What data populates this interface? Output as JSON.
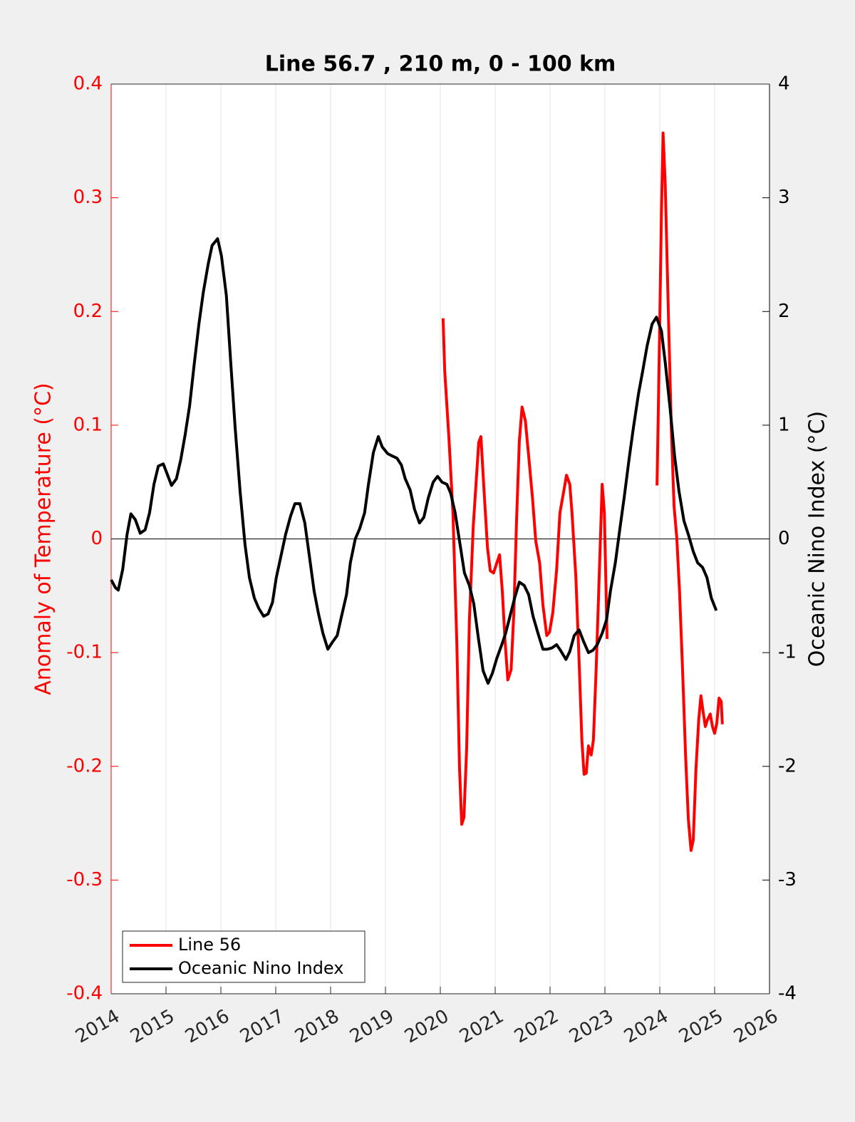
{
  "chart_data": {
    "type": "line",
    "title": "Line 56.7 , 210 m, 0 - 100 km",
    "y_label": "Anomaly of Temperature (°C)",
    "y2_label": "Oceanic Nino Index (°C)",
    "xlim": [
      2014,
      2026
    ],
    "xticks": [
      2014,
      2015,
      2016,
      2017,
      2018,
      2019,
      2020,
      2021,
      2022,
      2023,
      2024,
      2025,
      2026
    ],
    "ylim": [
      -0.4,
      0.4
    ],
    "yticks": [
      -0.4,
      -0.3,
      -0.2,
      -0.1,
      0,
      0.1,
      0.2,
      0.3,
      0.4
    ],
    "y2lim": [
      -4,
      4
    ],
    "y2ticks": [
      -4,
      -3,
      -2,
      -1,
      0,
      1,
      2,
      3,
      4
    ],
    "grid": "x",
    "zero_line": true,
    "legend": "lower left",
    "series": [
      {
        "name": "Line 56",
        "color": "#ff0000",
        "x": [
          2020.05,
          2020.08,
          2020.16,
          2020.23,
          2020.3,
          2020.35,
          2020.39,
          2020.43,
          2020.48,
          2020.53,
          2020.6,
          2020.65,
          2020.7,
          2020.74,
          2020.79,
          2020.86,
          2020.91,
          2020.97,
          2021.03,
          2021.08,
          2021.13,
          2021.18,
          2021.23,
          2021.29,
          2021.34,
          2021.39,
          2021.44,
          2021.49,
          2021.55,
          2021.61,
          2021.68,
          2021.74,
          2021.81,
          2021.87,
          2021.94,
          2021.99,
          2022.05,
          2022.12,
          2022.18,
          2022.25,
          2022.3,
          2022.36,
          2022.4,
          2022.47,
          2022.53,
          2022.58,
          2022.62,
          2022.66,
          2022.7,
          2022.75,
          2022.79,
          2022.84,
          2022.9,
          2022.95,
          2022.99,
          2023.04,
          null,
          2023.95,
          2023.99,
          2024.03,
          2024.06,
          2024.1,
          2024.16,
          2024.21,
          2024.26,
          2024.31,
          2024.36,
          2024.42,
          2024.47,
          2024.52,
          2024.57,
          2024.61,
          2024.66,
          2024.71,
          2024.75,
          2024.79,
          2024.83,
          2024.87,
          2024.92,
          2024.96,
          2025.0,
          2025.04,
          2025.08,
          2025.12,
          2025.14
        ],
        "values": [
          0.194,
          0.148,
          0.086,
          0.023,
          -0.09,
          -0.202,
          -0.251,
          -0.245,
          -0.184,
          -0.071,
          0.011,
          0.048,
          0.085,
          0.09,
          0.048,
          -0.008,
          -0.028,
          -0.03,
          -0.021,
          -0.014,
          -0.046,
          -0.09,
          -0.124,
          -0.115,
          -0.065,
          0.017,
          0.086,
          0.116,
          0.104,
          0.073,
          0.036,
          -0.002,
          -0.021,
          -0.058,
          -0.085,
          -0.082,
          -0.065,
          -0.027,
          0.023,
          0.042,
          0.056,
          0.048,
          0.023,
          -0.033,
          -0.108,
          -0.177,
          -0.207,
          -0.206,
          -0.182,
          -0.19,
          -0.177,
          -0.115,
          -0.027,
          0.048,
          0.023,
          -0.088,
          null,
          0.047,
          0.161,
          0.286,
          0.357,
          0.311,
          0.192,
          0.098,
          0.029,
          0.001,
          -0.046,
          -0.121,
          -0.19,
          -0.246,
          -0.274,
          -0.265,
          -0.202,
          -0.159,
          -0.138,
          -0.152,
          -0.165,
          -0.159,
          -0.154,
          -0.165,
          -0.171,
          -0.162,
          -0.14,
          -0.143,
          -0.163
        ]
      },
      {
        "name": "Oceanic Nino Index",
        "color": "#000000",
        "axis": "y2",
        "x": [
          2014.0,
          2014.08,
          2014.13,
          2014.21,
          2014.29,
          2014.36,
          2014.44,
          2014.53,
          2014.62,
          2014.7,
          2014.78,
          2014.86,
          2014.95,
          2015.03,
          2015.1,
          2015.19,
          2015.27,
          2015.35,
          2015.43,
          2015.51,
          2015.6,
          2015.68,
          2015.77,
          2015.84,
          2015.94,
          2016.01,
          2016.1,
          2016.18,
          2016.26,
          2016.35,
          2016.44,
          2016.52,
          2016.61,
          2016.69,
          2016.78,
          2016.86,
          2016.94,
          2017.01,
          2017.1,
          2017.18,
          2017.27,
          2017.35,
          2017.44,
          2017.53,
          2017.61,
          2017.7,
          2017.78,
          2017.86,
          2017.95,
          2018.03,
          2018.12,
          2018.19,
          2018.29,
          2018.36,
          2018.45,
          2018.53,
          2018.62,
          2018.69,
          2018.78,
          2018.87,
          2018.94,
          2019.04,
          2019.12,
          2019.21,
          2019.29,
          2019.36,
          2019.45,
          2019.53,
          2019.62,
          2019.7,
          2019.78,
          2019.87,
          2019.95,
          2020.03,
          2020.12,
          2020.19,
          2020.27,
          2020.36,
          2020.44,
          2020.53,
          2020.61,
          2020.69,
          2020.78,
          2020.87,
          2020.95,
          2021.03,
          2021.12,
          2021.19,
          2021.27,
          2021.36,
          2021.44,
          2021.53,
          2021.61,
          2021.69,
          2021.78,
          2021.87,
          2021.95,
          2022.03,
          2022.12,
          2022.19,
          2022.29,
          2022.36,
          2022.44,
          2022.53,
          2022.61,
          2022.7,
          2022.78,
          2022.86,
          2022.95,
          2023.03,
          2023.1,
          2023.19,
          2023.27,
          2023.35,
          2023.44,
          2023.52,
          2023.61,
          2023.69,
          2023.77,
          2023.86,
          2023.94,
          2024.03,
          2024.1,
          2024.19,
          2024.27,
          2024.35,
          2024.44,
          2024.52,
          2024.61,
          2024.69,
          2024.78,
          2024.86,
          2024.94,
          2025.03
        ],
        "values": [
          -0.36,
          -0.43,
          -0.45,
          -0.27,
          0.04,
          0.22,
          0.17,
          0.05,
          0.08,
          0.23,
          0.48,
          0.64,
          0.66,
          0.56,
          0.47,
          0.53,
          0.7,
          0.92,
          1.17,
          1.52,
          1.89,
          2.17,
          2.42,
          2.58,
          2.64,
          2.49,
          2.14,
          1.55,
          0.98,
          0.42,
          -0.05,
          -0.34,
          -0.52,
          -0.61,
          -0.68,
          -0.66,
          -0.56,
          -0.34,
          -0.14,
          0.04,
          0.2,
          0.31,
          0.31,
          0.14,
          -0.14,
          -0.46,
          -0.66,
          -0.83,
          -0.97,
          -0.91,
          -0.85,
          -0.7,
          -0.49,
          -0.21,
          0.0,
          0.09,
          0.23,
          0.48,
          0.76,
          0.9,
          0.81,
          0.75,
          0.73,
          0.71,
          0.65,
          0.53,
          0.43,
          0.26,
          0.14,
          0.19,
          0.36,
          0.5,
          0.55,
          0.5,
          0.48,
          0.4,
          0.23,
          -0.05,
          -0.3,
          -0.41,
          -0.57,
          -0.86,
          -1.16,
          -1.27,
          -1.18,
          -1.05,
          -0.93,
          -0.83,
          -0.68,
          -0.51,
          -0.38,
          -0.41,
          -0.49,
          -0.68,
          -0.83,
          -0.97,
          -0.97,
          -0.96,
          -0.93,
          -0.98,
          -1.06,
          -0.99,
          -0.85,
          -0.8,
          -0.9,
          -1.0,
          -0.98,
          -0.93,
          -0.83,
          -0.71,
          -0.46,
          -0.21,
          0.08,
          0.36,
          0.7,
          0.98,
          1.27,
          1.48,
          1.7,
          1.89,
          1.95,
          1.83,
          1.55,
          1.14,
          0.73,
          0.42,
          0.16,
          0.04,
          -0.11,
          -0.21,
          -0.25,
          -0.34,
          -0.52,
          -0.63
        ]
      }
    ]
  }
}
